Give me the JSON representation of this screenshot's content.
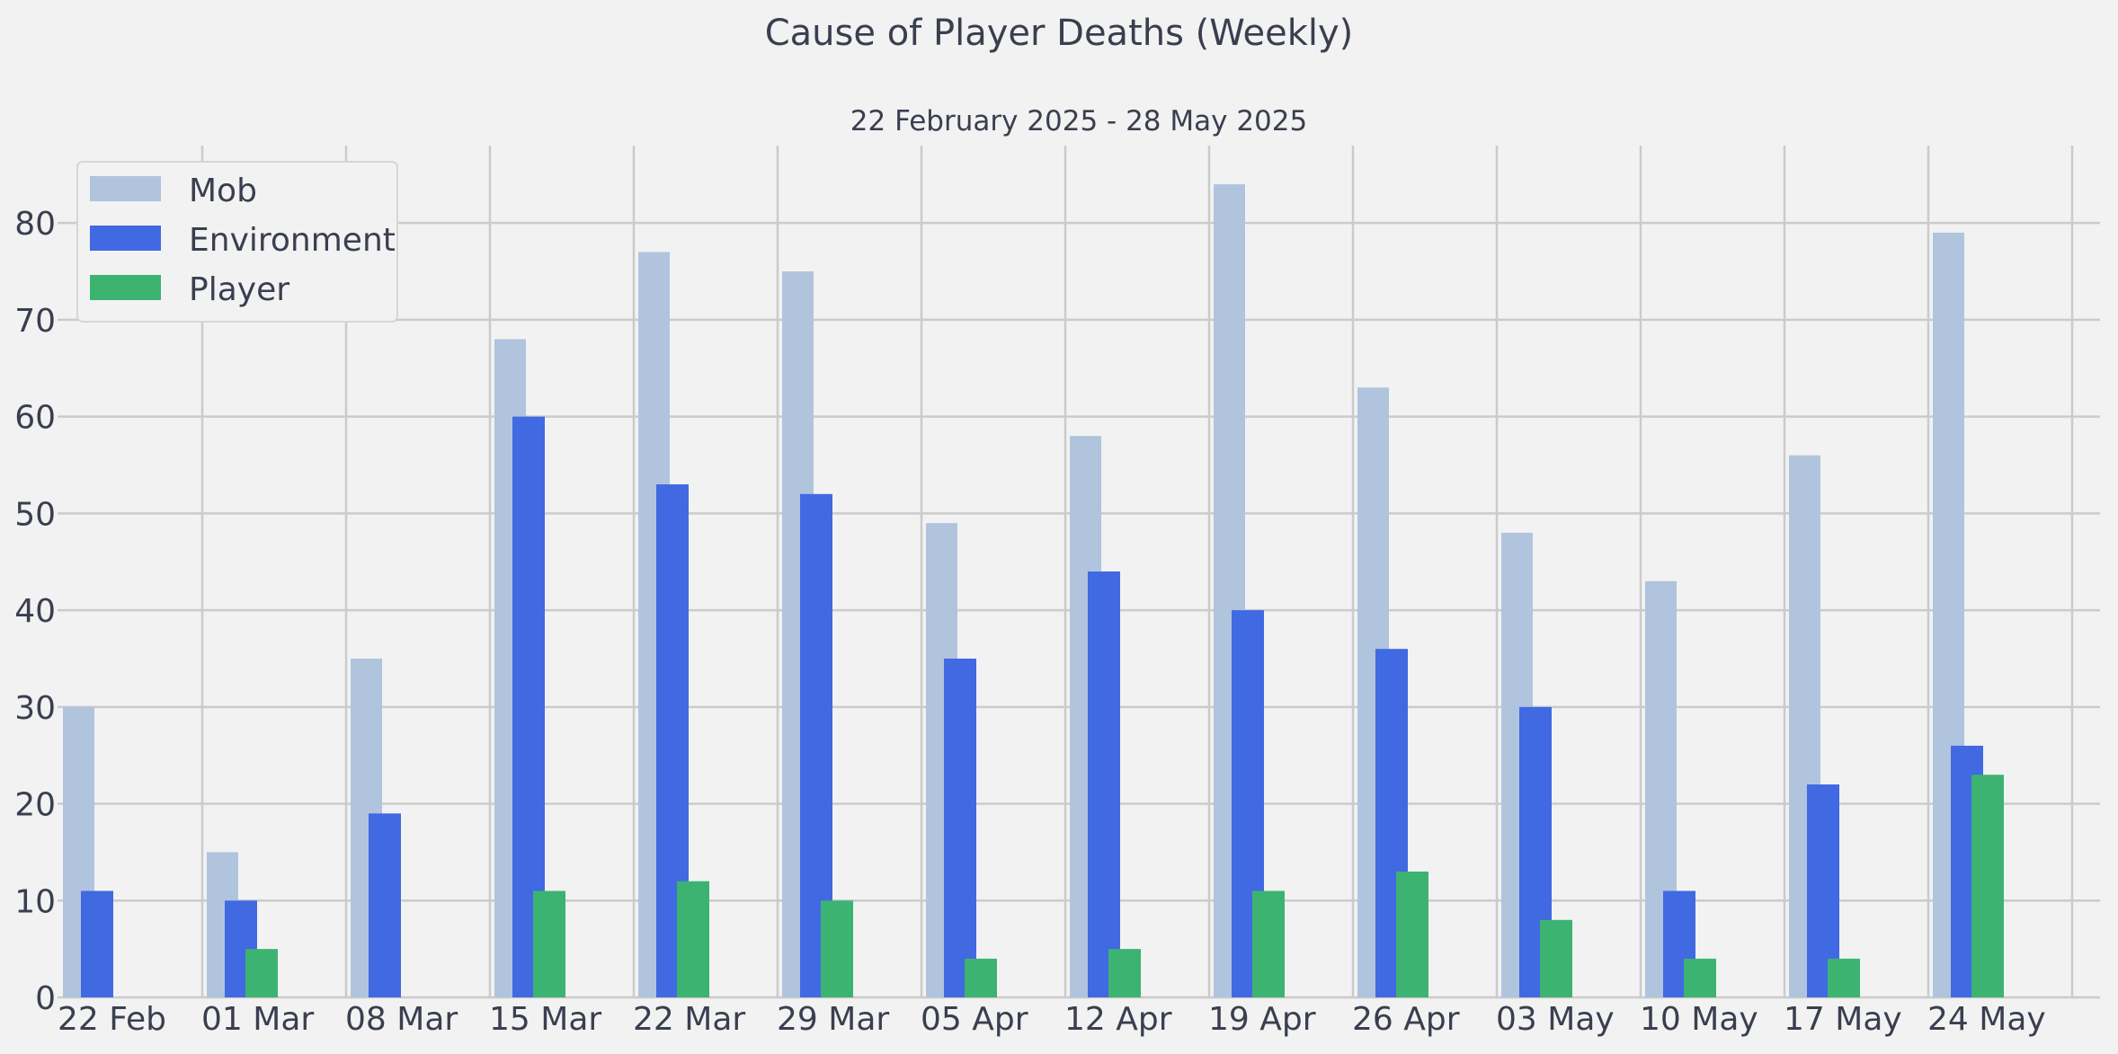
{
  "chart_data": {
    "type": "bar",
    "title": "Cause of Player Deaths (Weekly)",
    "subtitle": "22 February 2025 - 28 May 2025",
    "xlabel": "",
    "ylabel": "",
    "categories": [
      "22 Feb",
      "01 Mar",
      "08 Mar",
      "15 Mar",
      "22 Mar",
      "29 Mar",
      "05 Apr",
      "12 Apr",
      "19 Apr",
      "26 Apr",
      "03 May",
      "10 May",
      "17 May",
      "24 May"
    ],
    "series": [
      {
        "name": "Mob",
        "color": "#b0c4de",
        "values": [
          30,
          15,
          35,
          68,
          77,
          75,
          49,
          58,
          84,
          63,
          48,
          43,
          56,
          79
        ]
      },
      {
        "name": "Environment",
        "color": "#4169e1",
        "values": [
          11,
          10,
          19,
          60,
          53,
          52,
          35,
          44,
          40,
          36,
          30,
          11,
          22,
          26
        ]
      },
      {
        "name": "Player",
        "color": "#3cb371",
        "values": [
          0,
          5,
          0,
          11,
          12,
          10,
          4,
          5,
          11,
          13,
          8,
          4,
          4,
          23
        ]
      }
    ],
    "ylim": [
      0,
      88
    ],
    "yticks": [
      0,
      10,
      20,
      30,
      40,
      50,
      60,
      70,
      80
    ],
    "grid": true,
    "legend_position": "top-left"
  }
}
